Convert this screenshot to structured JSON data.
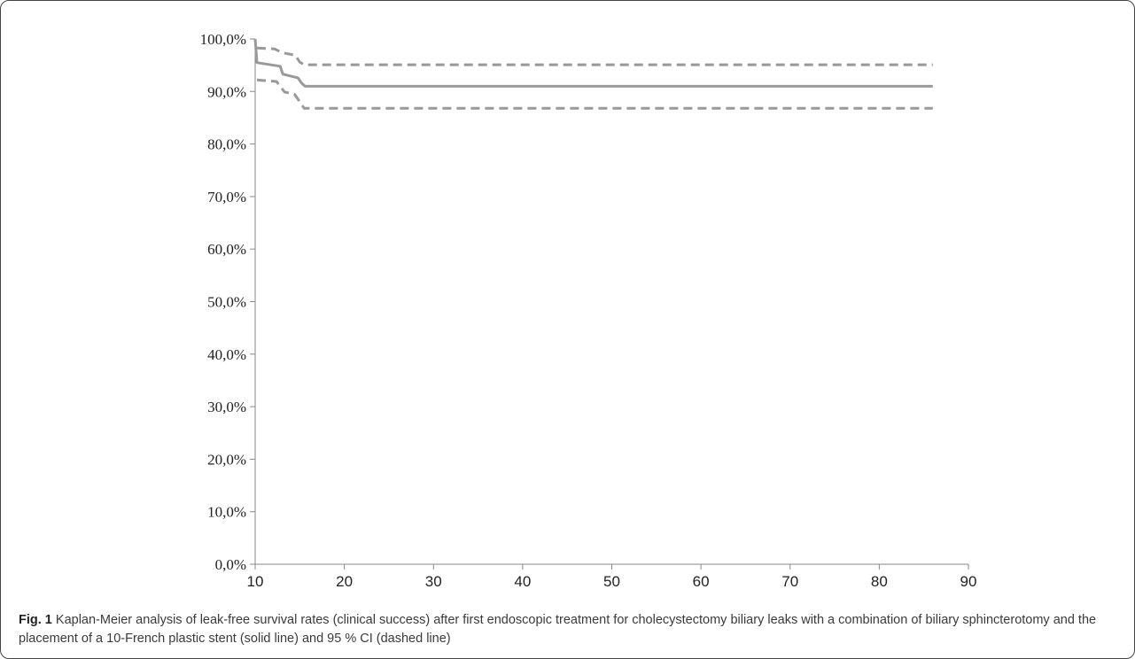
{
  "chart_data": {
    "type": "line",
    "title": "",
    "xlabel": "",
    "ylabel": "",
    "xlim": [
      10,
      90
    ],
    "ylim": [
      0,
      100
    ],
    "x_ticks": [
      "10",
      "20",
      "30",
      "40",
      "50",
      "60",
      "70",
      "80",
      "90"
    ],
    "y_ticks": [
      "0,0%",
      "10,0%",
      "20,0%",
      "30,0%",
      "40,0%",
      "50,0%",
      "60,0%",
      "70,0%",
      "80,0%",
      "90,0%",
      "100,0%"
    ],
    "grid": false,
    "legend": "none",
    "series": [
      {
        "style": "solid",
        "color": "#999999",
        "points": [
          [
            10,
            100
          ],
          [
            10.2,
            95.5
          ],
          [
            12.8,
            94.8
          ],
          [
            13.1,
            93.3
          ],
          [
            14.8,
            92.6
          ],
          [
            15.2,
            91.6
          ],
          [
            15.6,
            91
          ],
          [
            86,
            91
          ]
        ]
      },
      {
        "style": "dashed",
        "color": "#999999",
        "points": [
          [
            10.2,
            98.3
          ],
          [
            12.2,
            98.1
          ],
          [
            13,
            97.4
          ],
          [
            14.5,
            96.9
          ],
          [
            15,
            95.6
          ],
          [
            15.5,
            95.1
          ],
          [
            86,
            95.1
          ]
        ]
      },
      {
        "style": "dashed",
        "color": "#999999",
        "points": [
          [
            10.2,
            92.2
          ],
          [
            12.4,
            91.9
          ],
          [
            13.3,
            89.9
          ],
          [
            14.4,
            89.5
          ],
          [
            14.9,
            88.3
          ],
          [
            15.5,
            86.8
          ],
          [
            86,
            86.8
          ]
        ]
      }
    ]
  },
  "caption": {
    "label": "Fig. 1",
    "text": " Kaplan-Meier analysis of leak-free survival rates (clinical success) after first endoscopic treatment for cholecystectomy biliary leaks with a combination of biliary sphincterotomy and the placement of a 10-French plastic stent (solid line) and 95 % CI (dashed line)"
  }
}
